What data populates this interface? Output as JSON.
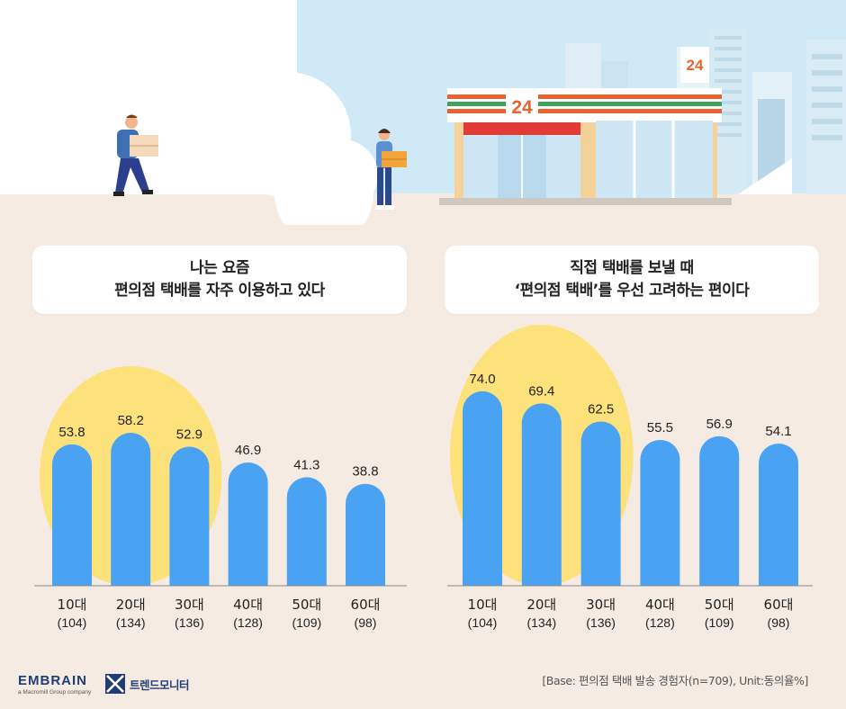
{
  "scene": {
    "store_sign": "24",
    "building_sign": "24"
  },
  "titles": {
    "left": [
      "나는 요즘",
      "편의점 택배를 자주 이용하고 있다"
    ],
    "right": [
      "직접 택배를 보낼 때",
      "‘편의점 택배’를 우선 고려하는 편이다"
    ]
  },
  "chart_data": [
    {
      "type": "bar",
      "categories": [
        "10대",
        "20대",
        "30대",
        "40대",
        "50대",
        "60대"
      ],
      "sample_sizes": [
        "(104)",
        "(134)",
        "(136)",
        "(128)",
        "(109)",
        "(98)"
      ],
      "values": [
        53.8,
        58.2,
        52.9,
        46.9,
        41.3,
        38.8
      ],
      "value_labels": [
        "53.8",
        "58.2",
        "52.9",
        "46.9",
        "41.3",
        "38.8"
      ],
      "highlighted": [
        "10대",
        "20대",
        "30대"
      ],
      "ylim": [
        0,
        100
      ],
      "bar_color": "#4aa3f2",
      "highlight_color": "#fde17a"
    },
    {
      "type": "bar",
      "categories": [
        "10대",
        "20대",
        "30대",
        "40대",
        "50대",
        "60대"
      ],
      "sample_sizes": [
        "(104)",
        "(134)",
        "(136)",
        "(128)",
        "(109)",
        "(98)"
      ],
      "values": [
        74.0,
        69.4,
        62.5,
        55.5,
        56.9,
        54.1
      ],
      "value_labels": [
        "74.0",
        "69.4",
        "62.5",
        "55.5",
        "56.9",
        "54.1"
      ],
      "highlighted": [
        "10대",
        "20대",
        "30대"
      ],
      "ylim": [
        0,
        100
      ],
      "bar_color": "#4aa3f2",
      "highlight_color": "#fde17a"
    }
  ],
  "footer": {
    "brand": "EMBRAIN",
    "brand_sub": "a Macromill Group company",
    "trend_logo_text": "트렌드모니터",
    "base_note": "[Base: 편의점 택배 발송 경험자(n=709), Unit:동의율%]"
  },
  "colors": {
    "background": "#f6ebe2",
    "sky": "#cfe9f7",
    "bar": "#4aa3f2",
    "highlight": "#fde17a"
  }
}
